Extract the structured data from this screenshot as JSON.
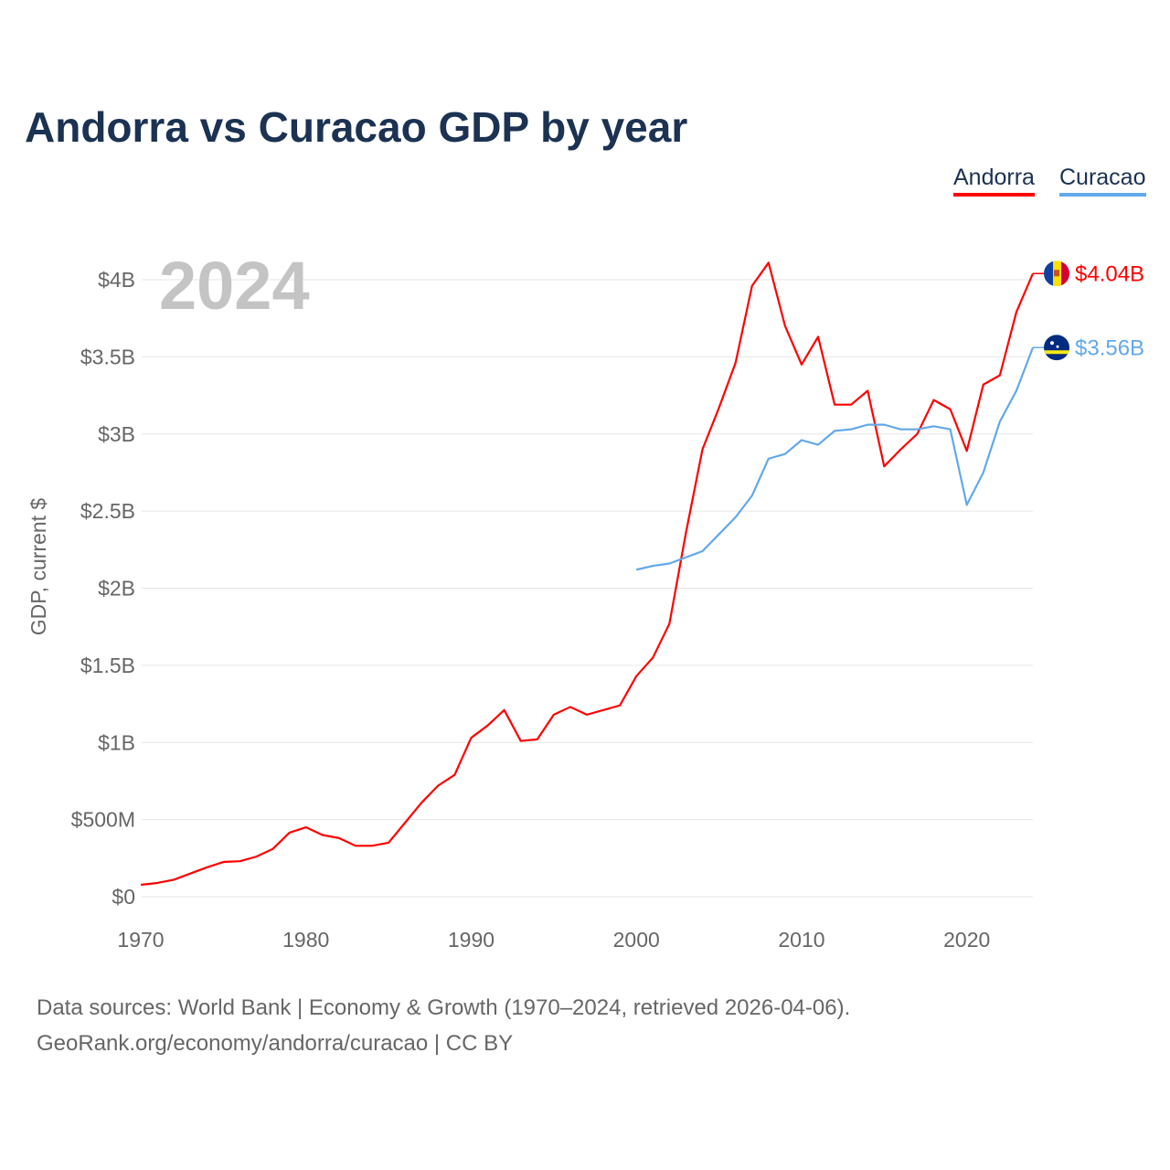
{
  "chart_data": {
    "type": "line",
    "title": "Andorra vs Curacao GDP by year",
    "ylabel": "GDP, current $",
    "xlabel": "",
    "xlim": [
      1970,
      2024
    ],
    "ylim": [
      0,
      4000000000
    ],
    "year_overlay": "2024",
    "x_ticks": [
      1970,
      1980,
      1990,
      2000,
      2010,
      2020
    ],
    "y_ticks": [
      {
        "value": 0,
        "label": "$0"
      },
      {
        "value": 500000000,
        "label": "$500M"
      },
      {
        "value": 1000000000,
        "label": "$1B"
      },
      {
        "value": 1500000000,
        "label": "$1.5B"
      },
      {
        "value": 2000000000,
        "label": "$2B"
      },
      {
        "value": 2500000000,
        "label": "$2.5B"
      },
      {
        "value": 3000000000,
        "label": "$3B"
      },
      {
        "value": 3500000000,
        "label": "$3.5B"
      },
      {
        "value": 4000000000,
        "label": "$4B"
      }
    ],
    "legend_position": "top-right",
    "series": [
      {
        "name": "Andorra",
        "color": "#ff0000",
        "end_label": "$4.04B",
        "x": [
          1970,
          1971,
          1972,
          1973,
          1974,
          1975,
          1976,
          1977,
          1978,
          1979,
          1980,
          1981,
          1982,
          1983,
          1984,
          1985,
          1986,
          1987,
          1988,
          1989,
          1990,
          1991,
          1992,
          1993,
          1994,
          1995,
          1996,
          1997,
          1998,
          1999,
          2000,
          2001,
          2002,
          2003,
          2004,
          2005,
          2006,
          2007,
          2008,
          2009,
          2010,
          2011,
          2012,
          2013,
          2014,
          2015,
          2016,
          2017,
          2018,
          2019,
          2020,
          2021,
          2022,
          2023,
          2024
        ],
        "values_billion": [
          0.077,
          0.089,
          0.11,
          0.15,
          0.19,
          0.225,
          0.23,
          0.26,
          0.31,
          0.415,
          0.45,
          0.4,
          0.38,
          0.33,
          0.33,
          0.35,
          0.48,
          0.61,
          0.72,
          0.79,
          1.03,
          1.11,
          1.21,
          1.01,
          1.02,
          1.18,
          1.23,
          1.18,
          1.21,
          1.24,
          1.43,
          1.55,
          1.77,
          2.36,
          2.9,
          3.17,
          3.46,
          3.96,
          4.11,
          3.7,
          3.45,
          3.63,
          3.19,
          3.19,
          3.28,
          2.79,
          2.9,
          3.0,
          3.22,
          3.16,
          2.89,
          3.32,
          3.38,
          3.79,
          4.04
        ]
      },
      {
        "name": "Curacao",
        "color": "#62a8ea",
        "end_label": "$3.56B",
        "x": [
          2000,
          2001,
          2002,
          2003,
          2004,
          2005,
          2006,
          2007,
          2008,
          2009,
          2010,
          2011,
          2012,
          2013,
          2014,
          2015,
          2016,
          2017,
          2018,
          2019,
          2020,
          2021,
          2022,
          2023,
          2024
        ],
        "values_billion": [
          2.12,
          2.145,
          2.16,
          2.2,
          2.24,
          2.35,
          2.46,
          2.6,
          2.84,
          2.87,
          2.96,
          2.93,
          3.02,
          3.03,
          3.06,
          3.06,
          3.03,
          3.03,
          3.05,
          3.03,
          2.54,
          2.75,
          3.08,
          3.28,
          3.56
        ]
      }
    ]
  },
  "footer": {
    "line1": "Data sources: World Bank | Economy & Growth (1970–2024, retrieved 2026-04-06).",
    "line2": "GeoRank.org/economy/andorra/curacao | CC BY"
  }
}
